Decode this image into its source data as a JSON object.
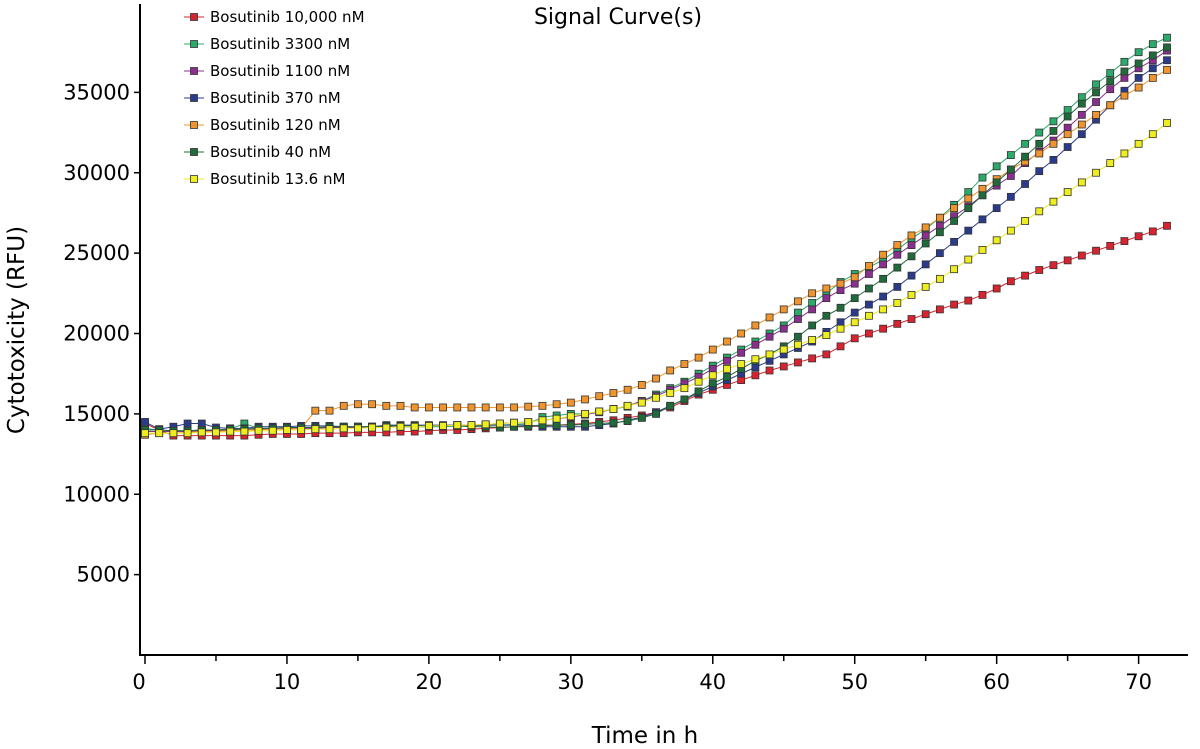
{
  "chart_data": {
    "type": "line",
    "title": "Signal Curve(s)",
    "xlabel": "Time in h",
    "ylabel": "Cytotoxicity (RFU)",
    "xlim": [
      0,
      73.5
    ],
    "ylim": [
      0,
      40000
    ],
    "xticks": [
      0,
      10,
      20,
      30,
      40,
      50,
      60,
      70
    ],
    "yticks": [
      5000,
      10000,
      15000,
      20000,
      25000,
      30000,
      35000
    ],
    "grid": false,
    "legend_position": "top-left",
    "x": [
      0,
      1,
      2,
      3,
      4,
      5,
      6,
      7,
      8,
      9,
      10,
      11,
      12,
      13,
      14,
      15,
      16,
      17,
      18,
      19,
      20,
      21,
      22,
      23,
      24,
      25,
      26,
      27,
      28,
      29,
      30,
      31,
      32,
      33,
      34,
      35,
      36,
      37,
      38,
      39,
      40,
      41,
      42,
      43,
      44,
      45,
      46,
      47,
      48,
      49,
      50,
      51,
      52,
      53,
      54,
      55,
      56,
      57,
      58,
      59,
      60,
      61,
      62,
      63,
      64,
      65,
      66,
      67,
      68,
      69,
      70,
      71,
      72
    ],
    "series": [
      {
        "name": "Bosutinib 10,000 nM",
        "color": "#d9232e",
        "values": [
          14400,
          14000,
          13650,
          13650,
          13650,
          13650,
          13650,
          13650,
          13700,
          13750,
          13750,
          13750,
          13800,
          13800,
          13800,
          13850,
          13850,
          13850,
          13900,
          13900,
          13950,
          14000,
          14000,
          14050,
          14100,
          14150,
          14200,
          14200,
          14250,
          14300,
          14350,
          14400,
          14500,
          14600,
          14750,
          14900,
          15100,
          15400,
          15800,
          16200,
          16500,
          16800,
          17100,
          17400,
          17700,
          17950,
          18200,
          18450,
          18700,
          19200,
          19700,
          20000,
          20300,
          20600,
          20900,
          21200,
          21500,
          21800,
          22050,
          22400,
          22800,
          23250,
          23600,
          23950,
          24250,
          24550,
          24850,
          25150,
          25450,
          25750,
          26050,
          26350,
          26700
        ]
      },
      {
        "name": "Bosutinib 3300 nM",
        "color": "#2aab6a",
        "values": [
          14100,
          14000,
          13950,
          13950,
          14000,
          14000,
          14050,
          14400,
          14100,
          14100,
          14150,
          14150,
          14150,
          14150,
          14200,
          14200,
          14200,
          14200,
          14200,
          14200,
          14200,
          14200,
          14250,
          14250,
          14300,
          14300,
          14350,
          14400,
          14800,
          14900,
          15000,
          15000,
          15150,
          15300,
          15450,
          15800,
          16200,
          16600,
          17000,
          17500,
          18000,
          18500,
          19000,
          19500,
          20000,
          20500,
          21300,
          21900,
          22500,
          23200,
          23700,
          24100,
          24600,
          25200,
          25900,
          26500,
          27200,
          28000,
          28800,
          29700,
          30400,
          31100,
          31800,
          32500,
          33200,
          33900,
          34700,
          35500,
          36200,
          36900,
          37500,
          38000,
          38400
        ]
      },
      {
        "name": "Bosutinib 1100 nM",
        "color": "#8b2e8f",
        "values": [
          13900,
          13900,
          13900,
          13900,
          13950,
          13950,
          14000,
          14000,
          14050,
          14050,
          14100,
          14100,
          14100,
          14150,
          14150,
          14150,
          14200,
          14200,
          14200,
          14200,
          14250,
          14250,
          14300,
          14300,
          14350,
          14400,
          14450,
          14500,
          14600,
          14700,
          14800,
          14950,
          15100,
          15300,
          15500,
          15800,
          16100,
          16500,
          16900,
          17300,
          17800,
          18300,
          18800,
          19300,
          19800,
          20300,
          20900,
          21500,
          22200,
          22700,
          23100,
          23700,
          24300,
          24900,
          25500,
          26100,
          26700,
          27300,
          27900,
          28600,
          29200,
          29800,
          30600,
          31300,
          32000,
          32800,
          33600,
          34400,
          35200,
          35900,
          36500,
          37000,
          37600
        ]
      },
      {
        "name": "Bosutinib 370 nM",
        "color": "#2b3b8c",
        "values": [
          14500,
          14050,
          14200,
          14400,
          14400,
          14150,
          14100,
          14100,
          14200,
          14200,
          14200,
          14250,
          14250,
          14250,
          14200,
          14200,
          14200,
          14300,
          14300,
          14300,
          14300,
          14300,
          14300,
          14250,
          14300,
          14300,
          14300,
          14300,
          14200,
          14200,
          14200,
          14200,
          14300,
          14400,
          14600,
          14800,
          15100,
          15500,
          15900,
          16300,
          16700,
          17100,
          17500,
          17900,
          18300,
          18700,
          19100,
          19500,
          20100,
          20700,
          21300,
          21800,
          22300,
          22900,
          23600,
          24300,
          25000,
          25700,
          26400,
          27100,
          27800,
          28500,
          29300,
          30100,
          30800,
          31600,
          32400,
          33300,
          34200,
          35100,
          35900,
          36500,
          37000
        ]
      },
      {
        "name": "Bosutinib 120 nM",
        "color": "#f0952e",
        "values": [
          13700,
          13800,
          13800,
          13850,
          13900,
          13900,
          13950,
          14000,
          14000,
          14050,
          14050,
          14100,
          15200,
          15200,
          15500,
          15600,
          15600,
          15500,
          15500,
          15400,
          15400,
          15400,
          15400,
          15400,
          15400,
          15400,
          15400,
          15450,
          15500,
          15600,
          15700,
          15900,
          16100,
          16300,
          16500,
          16800,
          17200,
          17700,
          18100,
          18500,
          19000,
          19500,
          20000,
          20500,
          21000,
          21500,
          22000,
          22500,
          22800,
          23100,
          23500,
          24200,
          24900,
          25500,
          26100,
          26600,
          27200,
          27800,
          28400,
          29000,
          29600,
          30200,
          30700,
          31200,
          31800,
          32400,
          33000,
          33600,
          34200,
          34800,
          35300,
          35900,
          36400
        ]
      },
      {
        "name": "Bosutinib 40 nM",
        "color": "#1f6b3a",
        "values": [
          14000,
          14000,
          13950,
          13950,
          14000,
          14000,
          14050,
          14050,
          14100,
          14100,
          14150,
          14150,
          14150,
          14200,
          14200,
          14200,
          14200,
          14250,
          14250,
          14250,
          14250,
          14250,
          14250,
          14200,
          14200,
          14150,
          14200,
          14250,
          14300,
          14300,
          14300,
          14350,
          14400,
          14450,
          14550,
          14750,
          15000,
          15500,
          15900,
          16400,
          16900,
          17300,
          17800,
          18300,
          18700,
          19200,
          19800,
          20500,
          21100,
          21600,
          22200,
          22800,
          23400,
          24100,
          24800,
          25600,
          26300,
          27000,
          27800,
          28600,
          29400,
          30200,
          31000,
          31800,
          32600,
          33500,
          34300,
          35000,
          35700,
          36300,
          36800,
          37300,
          37800
        ]
      },
      {
        "name": "Bosutinib 13.6 nM",
        "color": "#eded1f",
        "values": [
          13800,
          13800,
          13800,
          13800,
          13850,
          13850,
          13900,
          13900,
          13950,
          13950,
          14000,
          14000,
          14050,
          14050,
          14100,
          14100,
          14150,
          14150,
          14200,
          14200,
          14250,
          14250,
          14300,
          14300,
          14350,
          14400,
          14450,
          14500,
          14600,
          14700,
          14850,
          15000,
          15150,
          15300,
          15500,
          15700,
          16000,
          16300,
          16600,
          17000,
          17400,
          17800,
          18100,
          18400,
          18700,
          19000,
          19300,
          19600,
          19900,
          20300,
          20700,
          21100,
          21500,
          21900,
          22400,
          22900,
          23400,
          24000,
          24600,
          25200,
          25800,
          26400,
          27000,
          27600,
          28200,
          28800,
          29400,
          30000,
          30600,
          31200,
          31800,
          32400,
          33100
        ]
      }
    ]
  }
}
